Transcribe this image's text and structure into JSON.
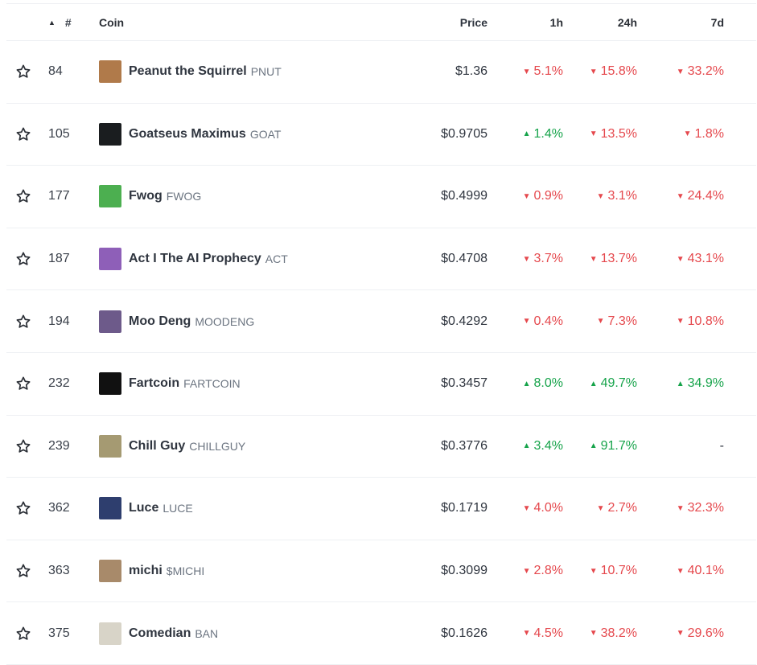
{
  "header": {
    "rank": "#",
    "coin": "Coin",
    "price": "Price",
    "h1": "1h",
    "h24": "24h",
    "d7": "7d"
  },
  "colors": {
    "down": "#e5484d",
    "up": "#16a34a"
  },
  "rows": [
    {
      "rank": "84",
      "name": "Peanut the Squirrel",
      "symbol": "PNUT",
      "price": "$1.36",
      "h1": "5.1%",
      "h1_dir": "down",
      "h24": "15.8%",
      "h24_dir": "down",
      "d7": "33.2%",
      "d7_dir": "down",
      "logo_color": "#b07a4a"
    },
    {
      "rank": "105",
      "name": "Goatseus Maximus",
      "symbol": "GOAT",
      "price": "$0.9705",
      "h1": "1.4%",
      "h1_dir": "up",
      "h24": "13.5%",
      "h24_dir": "down",
      "d7": "1.8%",
      "d7_dir": "down",
      "logo_color": "#1a1d1f"
    },
    {
      "rank": "177",
      "name": "Fwog",
      "symbol": "FWOG",
      "price": "$0.4999",
      "h1": "0.9%",
      "h1_dir": "down",
      "h24": "3.1%",
      "h24_dir": "down",
      "d7": "24.4%",
      "d7_dir": "down",
      "logo_color": "#4caf50"
    },
    {
      "rank": "187",
      "name": "Act I The AI Prophecy",
      "symbol": "ACT",
      "price": "$0.4708",
      "h1": "3.7%",
      "h1_dir": "down",
      "h24": "13.7%",
      "h24_dir": "down",
      "d7": "43.1%",
      "d7_dir": "down",
      "logo_color": "#8e5fb8"
    },
    {
      "rank": "194",
      "name": "Moo Deng",
      "symbol": "MOODENG",
      "price": "$0.4292",
      "h1": "0.4%",
      "h1_dir": "down",
      "h24": "7.3%",
      "h24_dir": "down",
      "d7": "10.8%",
      "d7_dir": "down",
      "logo_color": "#6d5a8a"
    },
    {
      "rank": "232",
      "name": "Fartcoin",
      "symbol": "FARTCOIN",
      "price": "$0.3457",
      "h1": "8.0%",
      "h1_dir": "up",
      "h24": "49.7%",
      "h24_dir": "up",
      "d7": "34.9%",
      "d7_dir": "up",
      "logo_color": "#111111"
    },
    {
      "rank": "239",
      "name": "Chill Guy",
      "symbol": "CHILLGUY",
      "price": "$0.3776",
      "h1": "3.4%",
      "h1_dir": "up",
      "h24": "91.7%",
      "h24_dir": "up",
      "d7": "-",
      "d7_dir": "none",
      "logo_color": "#a59a72"
    },
    {
      "rank": "362",
      "name": "Luce",
      "symbol": "LUCE",
      "price": "$0.1719",
      "h1": "4.0%",
      "h1_dir": "down",
      "h24": "2.7%",
      "h24_dir": "down",
      "d7": "32.3%",
      "d7_dir": "down",
      "logo_color": "#2e3e6e"
    },
    {
      "rank": "363",
      "name": "michi",
      "symbol": "$MICHI",
      "price": "$0.3099",
      "h1": "2.8%",
      "h1_dir": "down",
      "h24": "10.7%",
      "h24_dir": "down",
      "d7": "40.1%",
      "d7_dir": "down",
      "logo_color": "#a88a6a"
    },
    {
      "rank": "375",
      "name": "Comedian",
      "symbol": "BAN",
      "price": "$0.1626",
      "h1": "4.5%",
      "h1_dir": "down",
      "h24": "38.2%",
      "h24_dir": "down",
      "d7": "29.6%",
      "d7_dir": "down",
      "logo_color": "#d8d4c8"
    }
  ]
}
